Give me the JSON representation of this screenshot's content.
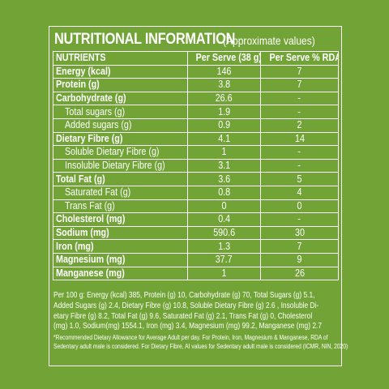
{
  "title": {
    "main": "NUTRITIONAL INFORMATION",
    "sub": "(Approximate values)"
  },
  "table": {
    "headers": [
      "NUTRIENTS",
      "Per Serve (38 g)",
      "Per Serve % RDA*"
    ],
    "rows": [
      {
        "name": "Energy (kcal)",
        "serve": "146",
        "rda": "7",
        "style": "bold"
      },
      {
        "name": "Protein (g)",
        "serve": "3.8",
        "rda": "7",
        "style": "bold"
      },
      {
        "name": "Carbohydrate (g)",
        "serve": "26.6",
        "rda": "-",
        "style": "bold"
      },
      {
        "name": "Total sugars (g)",
        "serve": "1.9",
        "rda": "-",
        "style": "sub"
      },
      {
        "name": "Added sugars (g)",
        "serve": "0.9",
        "rda": "2",
        "style": "sub"
      },
      {
        "name": "Dietary Fibre (g)",
        "serve": "4.1",
        "rda": "14",
        "style": "bold"
      },
      {
        "name": "Soluble Dietary Fibre (g)",
        "serve": "1",
        "rda": "-",
        "style": "sub"
      },
      {
        "name": "Insoluble Dietary Fibre (g)",
        "serve": "3.1",
        "rda": "-",
        "style": "sub"
      },
      {
        "name": "Total Fat (g)",
        "serve": "3.6",
        "rda": "5",
        "style": "bold"
      },
      {
        "name": "Saturated Fat (g)",
        "serve": "0.8",
        "rda": "4",
        "style": "sub"
      },
      {
        "name": "Trans Fat (g)",
        "serve": "0",
        "rda": "0",
        "style": "sub"
      },
      {
        "name": "Cholesterol (mg)",
        "serve": "0.4",
        "rda": "-",
        "style": "bold"
      },
      {
        "name": "Sodium (mg)",
        "serve": "590.6",
        "rda": "30",
        "style": "bold"
      },
      {
        "name": "Iron (mg)",
        "serve": "1.3",
        "rda": "7",
        "style": "bold"
      },
      {
        "name": "Magnesium (mg)",
        "serve": "37.7",
        "rda": "9",
        "style": "bold"
      },
      {
        "name": "Manganese (mg)",
        "serve": "1",
        "rda": "26",
        "style": "bold"
      }
    ]
  },
  "footnote_per100": [
    "Per 100 g: Energy (kcal) 385, Protein (g) 10, Carbohydrate (g) 70, Total Sugars (g) 5.1,",
    "Added Sugars (g) 2.4, Dietary Fibre (g) 10.8, Soluble Dietary Fibre (g) 2.6 , Insoluble Di-",
    "etary Fibre (g) 8.2, Total Fat (g) 9.6, Saturated Fat (g) 2.1, Trans Fat (g) 0, Cholesterol",
    "(mg) 1.0, Sodium(mg) 1554.1, Iron (mg) 3.4, Magnesium (mg) 99.2, Manganese (mg) 2.7"
  ],
  "footnote_rda": [
    "*Recommended Dietary Allowance for Average Adult per day. For Protein, Iron, Magnesium & Manganese, RDA of",
    "Sedentary adult male is considered. For Dietary Fibre, AI values for Sedentary adult male is considered (ICMR, NIN, 2020)"
  ],
  "colors": {
    "background": "#72a337",
    "text": "#ffffff"
  }
}
